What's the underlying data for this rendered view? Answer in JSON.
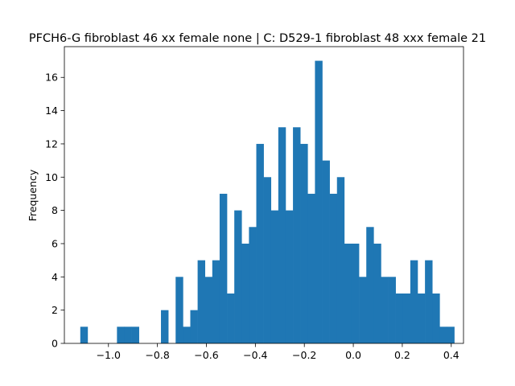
{
  "chart_data": {
    "type": "histogram",
    "title": "PFCH6-G fibroblast 46 xx female none | C: D529-1 fibroblast 48 xxx female 21",
    "xlabel": "",
    "ylabel": "Frequency",
    "xlim": [
      -1.18,
      0.45
    ],
    "ylim": [
      0,
      17.85
    ],
    "xticks": [
      -1.0,
      -0.8,
      -0.6,
      -0.4,
      -0.2,
      0.0,
      0.2,
      0.4
    ],
    "xtick_labels": [
      "−1.0",
      "−0.8",
      "−0.6",
      "−0.4",
      "−0.2",
      "0.0",
      "0.2",
      "0.4"
    ],
    "yticks": [
      0,
      2,
      4,
      6,
      8,
      10,
      12,
      14,
      16
    ],
    "ytick_labels": [
      "0",
      "2",
      "4",
      "6",
      "8",
      "10",
      "12",
      "14",
      "16"
    ],
    "bin_start": -1.115,
    "bin_width": 0.02995,
    "counts": [
      1,
      0,
      0,
      0,
      0,
      1,
      1,
      1,
      0,
      0,
      0,
      2,
      0,
      4,
      1,
      2,
      5,
      4,
      5,
      9,
      3,
      8,
      6,
      7,
      12,
      10,
      8,
      13,
      8,
      13,
      12,
      9,
      17,
      11,
      9,
      10,
      6,
      6,
      4,
      7,
      6,
      4,
      4,
      3,
      3,
      5,
      3,
      5,
      3,
      1,
      1
    ],
    "bar_color": "#1f77b4",
    "grid": false,
    "legend": "none"
  }
}
